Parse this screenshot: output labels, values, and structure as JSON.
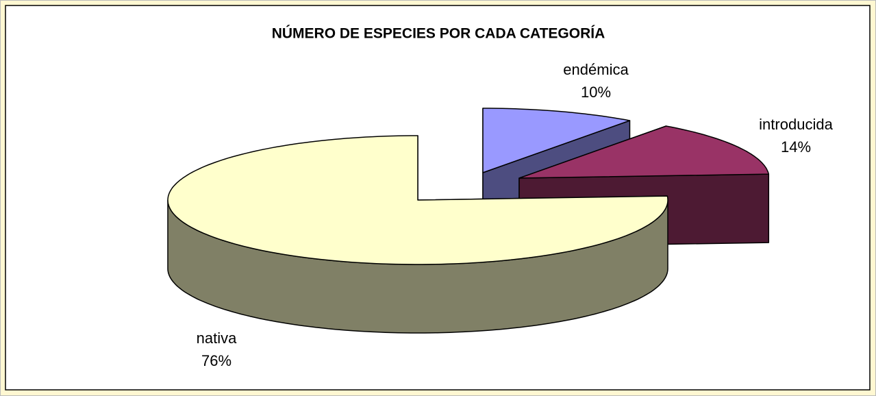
{
  "chart_data": {
    "type": "pie",
    "title": "NÚMERO DE ESPECIES POR CADA CATEGORÍA",
    "categories": [
      "endémica",
      "introducida",
      "nativa"
    ],
    "values": [
      10,
      14,
      76
    ],
    "value_labels": [
      "10%",
      "14%",
      "76%"
    ],
    "colors": [
      "#9999ff",
      "#993366",
      "#ffffcc"
    ]
  }
}
